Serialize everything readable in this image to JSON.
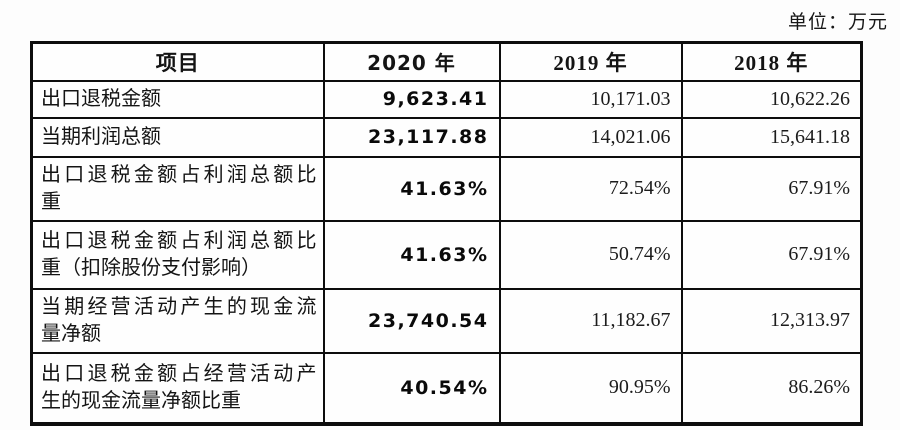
{
  "unit_label": "单位：万元",
  "table": {
    "headers": [
      "项目",
      "2020 年",
      "2019 年",
      "2018 年"
    ],
    "rows": [
      {
        "label_lines": [
          "出口退税金额"
        ],
        "values": [
          "9,623.41",
          "10,171.03",
          "10,622.26"
        ]
      },
      {
        "label_lines": [
          "当期利润总额"
        ],
        "values": [
          "23,117.88",
          "14,021.06",
          "15,641.18"
        ]
      },
      {
        "label_lines": [
          "出口退税金额占利润总额比",
          "重"
        ],
        "values": [
          "41.63%",
          "72.54%",
          "67.91%"
        ]
      },
      {
        "label_lines": [
          "出口退税金额占利润总额比",
          "重（扣除股份支付影响）"
        ],
        "values": [
          "41.63%",
          "50.74%",
          "67.91%"
        ]
      },
      {
        "label_lines": [
          "当期经营活动产生的现金流",
          "量净额"
        ],
        "values": [
          "23,740.54",
          "11,182.67",
          "12,313.97"
        ]
      },
      {
        "label_lines": [
          "出口退税金额占经营活动产",
          "生的现金流量净额比重"
        ],
        "values": [
          "40.54%",
          "90.95%",
          "86.26%"
        ]
      }
    ]
  },
  "colors": {
    "border": "#0d0d0d",
    "text": "#141414",
    "background": "#fdfdfd"
  }
}
